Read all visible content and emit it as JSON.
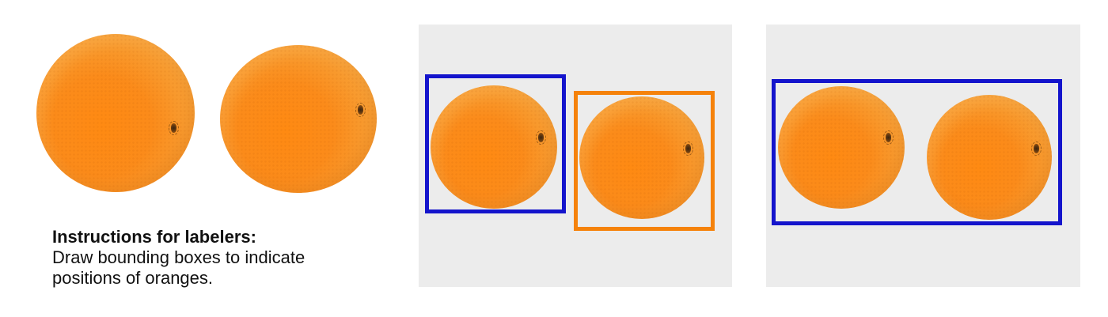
{
  "instructions": {
    "heading": "Instructions for labelers:",
    "body": "Draw bounding boxes to indicate positions of oranges."
  },
  "colors": {
    "panel_background": "#ececec",
    "box_blue": "#1414cc",
    "box_orange": "#f5820a",
    "orange_fruit": "#fb8b1a"
  },
  "panels": [
    {
      "name": "unlabeled-example",
      "background": false,
      "boxes": []
    },
    {
      "name": "correct-labeling",
      "background": true,
      "boxes": [
        "blue",
        "orange"
      ]
    },
    {
      "name": "incorrect-labeling",
      "background": true,
      "boxes": [
        "blue"
      ]
    }
  ]
}
